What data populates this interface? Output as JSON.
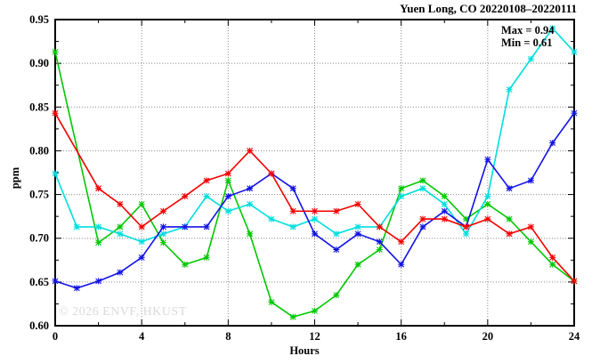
{
  "chart": {
    "title": "Yuen Long, CO 20220108–20220111",
    "stats": {
      "max_label": "Max = 0.94",
      "min_label": "Min = 0.61"
    },
    "watermark": "© 2026 ENVF, HKUST",
    "xlabel": "Hours",
    "ylabel": "ppm"
  },
  "chart_data": {
    "type": "line",
    "title": "Yuen Long, CO 20220108–20220111",
    "xlabel": "Hours",
    "ylabel": "ppm",
    "xlim": [
      0,
      24
    ],
    "ylim": [
      0.6,
      0.95
    ],
    "grid": true,
    "legend_position": "none",
    "annotations": {
      "max": "Max = 0.94",
      "min": "Min = 0.61"
    },
    "x_ticks": [
      "0",
      "4",
      "8",
      "12",
      "16",
      "20",
      "24"
    ],
    "y_ticks": [
      "0.60",
      "0.65",
      "0.70",
      "0.75",
      "0.80",
      "0.85",
      "0.90",
      "0.95"
    ],
    "x_grid": [
      4,
      8,
      12,
      16,
      20
    ],
    "y_grid": [
      0.65,
      0.7,
      0.75,
      0.8,
      0.85,
      0.9
    ],
    "x_minor_ticks": [
      2,
      6,
      10,
      14,
      18,
      22
    ],
    "y_minor_ticks": [
      0.625,
      0.675,
      0.725,
      0.775,
      0.825,
      0.875,
      0.925
    ],
    "x": [
      0,
      1,
      2,
      3,
      4,
      5,
      6,
      7,
      8,
      9,
      10,
      11,
      12,
      13,
      14,
      15,
      16,
      17,
      18,
      19,
      20,
      21,
      22,
      23,
      24
    ],
    "series": [
      {
        "name": "green",
        "color": "#00c800",
        "values": [
          0.913,
          null,
          0.695,
          0.713,
          0.739,
          0.695,
          0.67,
          0.678,
          0.766,
          0.705,
          0.627,
          0.61,
          0.617,
          0.635,
          0.67,
          0.687,
          0.757,
          0.766,
          0.748,
          0.722,
          0.739,
          0.722,
          0.696,
          0.67,
          0.651
        ]
      },
      {
        "name": "cyan",
        "color": "#00dede",
        "values": [
          0.774,
          0.713,
          0.713,
          0.705,
          0.696,
          0.705,
          0.713,
          0.748,
          0.731,
          0.739,
          0.722,
          0.713,
          0.722,
          0.705,
          0.713,
          0.713,
          0.748,
          0.757,
          0.739,
          0.705,
          0.748,
          0.87,
          0.905,
          0.94,
          0.913
        ]
      },
      {
        "name": "blue",
        "color": "#1212e6",
        "values": [
          0.651,
          0.643,
          0.651,
          0.661,
          0.678,
          0.713,
          0.713,
          0.713,
          0.748,
          0.757,
          0.774,
          0.757,
          0.705,
          0.687,
          0.705,
          0.696,
          0.67,
          0.713,
          0.731,
          0.713,
          0.79,
          0.757,
          0.766,
          0.809,
          0.843
        ]
      },
      {
        "name": "red",
        "color": "#f50000",
        "values": [
          0.843,
          null,
          0.757,
          0.739,
          0.713,
          0.731,
          0.748,
          0.766,
          0.774,
          0.8,
          0.774,
          0.731,
          0.731,
          0.731,
          0.739,
          0.713,
          0.696,
          0.722,
          0.722,
          0.713,
          0.722,
          0.705,
          0.713,
          0.678,
          0.651
        ]
      }
    ]
  }
}
